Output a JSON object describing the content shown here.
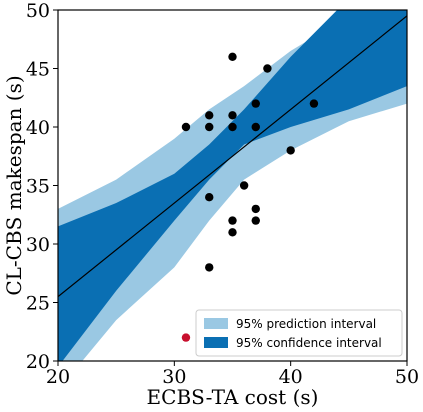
{
  "chart_data": {
    "type": "scatter",
    "title": "",
    "xlabel": "ECBS-TA cost (s)",
    "ylabel": "CL-CBS makespan (s)",
    "xlim": [
      20,
      50
    ],
    "ylim": [
      20,
      50
    ],
    "xticks": [
      20,
      30,
      40,
      50
    ],
    "yticks": [
      20,
      25,
      30,
      35,
      40,
      45,
      50
    ],
    "grid": false,
    "legend_position": "lower-right",
    "colors": {
      "prediction": "#9ac8e3",
      "confidence": "#0a6fb3",
      "points": "#000000",
      "outlier": "#c8102e",
      "fit_line": "#000000"
    },
    "legend": [
      {
        "label": "95% prediction interval",
        "color": "#9ac8e3"
      },
      {
        "label": "95% confidence interval",
        "color": "#0a6fb3"
      }
    ],
    "points": [
      {
        "x": 31,
        "y": 40
      },
      {
        "x": 33,
        "y": 41
      },
      {
        "x": 33,
        "y": 40
      },
      {
        "x": 33,
        "y": 34
      },
      {
        "x": 33,
        "y": 28
      },
      {
        "x": 35,
        "y": 46
      },
      {
        "x": 35,
        "y": 41
      },
      {
        "x": 35,
        "y": 40
      },
      {
        "x": 35,
        "y": 32
      },
      {
        "x": 35,
        "y": 31
      },
      {
        "x": 36,
        "y": 35
      },
      {
        "x": 37,
        "y": 42
      },
      {
        "x": 37,
        "y": 40
      },
      {
        "x": 37,
        "y": 33
      },
      {
        "x": 37,
        "y": 32
      },
      {
        "x": 38,
        "y": 45
      },
      {
        "x": 40,
        "y": 38
      },
      {
        "x": 42,
        "y": 42
      }
    ],
    "outlier": {
      "x": 31,
      "y": 22
    },
    "fit_line": {
      "x": [
        20,
        50
      ],
      "y": [
        25.5,
        49.5
      ]
    },
    "prediction_band": {
      "x": [
        20,
        25,
        30,
        33,
        36,
        40,
        45,
        50
      ],
      "upper": [
        33,
        35.5,
        39,
        41.5,
        43.5,
        46.5,
        49.5,
        52
      ],
      "lower": [
        17.5,
        23.5,
        28,
        32,
        35.5,
        38,
        40.5,
        42
      ]
    },
    "confidence_band": {
      "x": [
        20,
        25,
        30,
        33,
        36,
        40,
        45,
        50
      ],
      "upper": [
        31.5,
        33.5,
        36,
        38.5,
        41.5,
        46,
        51,
        55
      ],
      "lower": [
        19.5,
        26,
        32,
        35.5,
        38.5,
        40,
        41.5,
        43.5
      ]
    }
  }
}
